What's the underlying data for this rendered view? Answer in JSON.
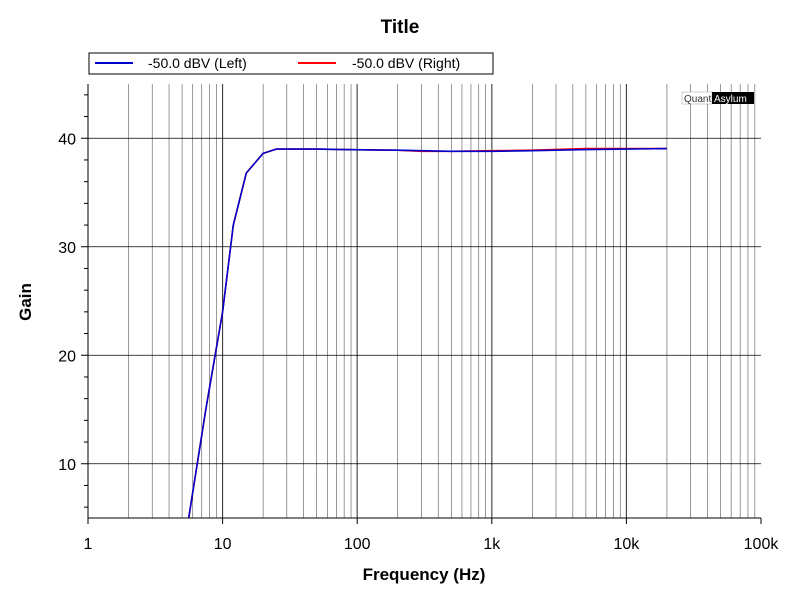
{
  "chart_data": {
    "type": "line",
    "title": "Title",
    "xlabel": "Frequency (Hz)",
    "ylabel": "Gain",
    "x_scale": "log",
    "xlim": [
      1,
      100000
    ],
    "ylim": [
      5,
      45
    ],
    "x_ticks": [
      {
        "value": 1,
        "label": "1"
      },
      {
        "value": 10,
        "label": "10"
      },
      {
        "value": 100,
        "label": "100"
      },
      {
        "value": 1000,
        "label": "1k"
      },
      {
        "value": 10000,
        "label": "10k"
      },
      {
        "value": 100000,
        "label": "100k"
      }
    ],
    "y_ticks": [
      {
        "value": 10,
        "label": "10"
      },
      {
        "value": 20,
        "label": "20"
      },
      {
        "value": 30,
        "label": "30"
      },
      {
        "value": 40,
        "label": "40"
      }
    ],
    "grid": true,
    "legend_position": "top",
    "watermark": {
      "part1": "Quant",
      "part2": "Asylum"
    },
    "series": [
      {
        "name": "-50.0 dBV (Left)",
        "color": "#0000cc",
        "points": [
          [
            5.6,
            5
          ],
          [
            7.5,
            15
          ],
          [
            10,
            24
          ],
          [
            12,
            32
          ],
          [
            15,
            36.8
          ],
          [
            20,
            38.6
          ],
          [
            25,
            39.0
          ],
          [
            50,
            39.0
          ],
          [
            80,
            38.95
          ],
          [
            200,
            38.9
          ],
          [
            300,
            38.85
          ],
          [
            500,
            38.8
          ],
          [
            1000,
            38.8
          ],
          [
            2000,
            38.85
          ],
          [
            5000,
            38.95
          ],
          [
            10000,
            39.0
          ],
          [
            20000,
            39.05
          ]
        ]
      },
      {
        "name": "-50.0 dBV (Right)",
        "color": "#ff0000",
        "points": [
          [
            5.6,
            5
          ],
          [
            7.5,
            15
          ],
          [
            10,
            24
          ],
          [
            12,
            32
          ],
          [
            15,
            36.8
          ],
          [
            20,
            38.6
          ],
          [
            25,
            39.0
          ],
          [
            50,
            39.0
          ],
          [
            80,
            38.95
          ],
          [
            200,
            38.9
          ],
          [
            300,
            38.8
          ],
          [
            500,
            38.8
          ],
          [
            1000,
            38.85
          ],
          [
            2000,
            38.9
          ],
          [
            5000,
            39.05
          ],
          [
            10000,
            39.05
          ],
          [
            20000,
            39.05
          ]
        ]
      }
    ]
  }
}
